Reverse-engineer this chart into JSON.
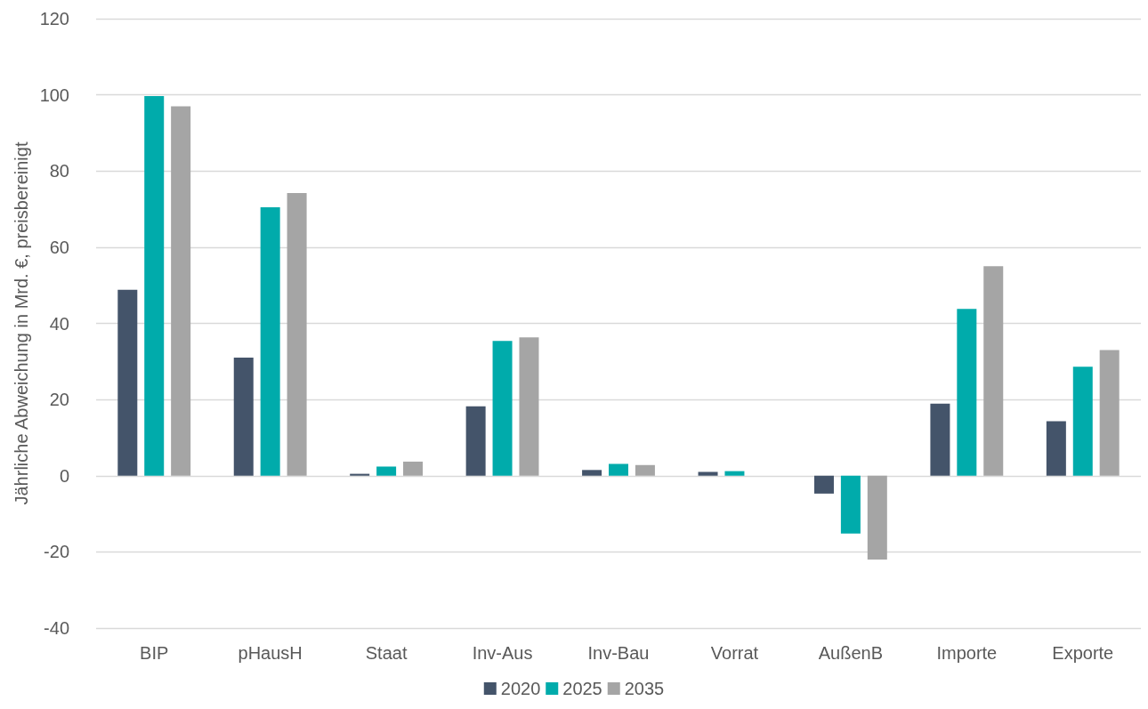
{
  "chart_data": {
    "type": "bar",
    "ylabel": "Jährliche Abweichung in Mrd. €, preisbereinigt",
    "categories": [
      "BIP",
      "pHausH",
      "Staat",
      "Inv-Aus",
      "Inv-Bau",
      "Vorrat",
      "AußenB",
      "Importe",
      "Exporte"
    ],
    "series": [
      {
        "name": "2020",
        "color": "#44546a",
        "values": [
          48.8,
          31,
          0.5,
          18.2,
          1.5,
          1,
          -4.7,
          18.9,
          14.3
        ]
      },
      {
        "name": "2025",
        "color": "#00abab",
        "values": [
          99.7,
          70.5,
          2.4,
          35.4,
          3.1,
          1.2,
          -15.2,
          43.8,
          28.6
        ]
      },
      {
        "name": "2035",
        "color": "#a5a5a5",
        "values": [
          97,
          74.2,
          3.7,
          36.3,
          2.8,
          0,
          -22,
          55,
          33
        ]
      }
    ],
    "ylim": [
      -40,
      120
    ],
    "yticks": [
      -40,
      -20,
      0,
      20,
      40,
      60,
      80,
      100,
      120
    ],
    "grid": "y",
    "legend": "bottom"
  }
}
